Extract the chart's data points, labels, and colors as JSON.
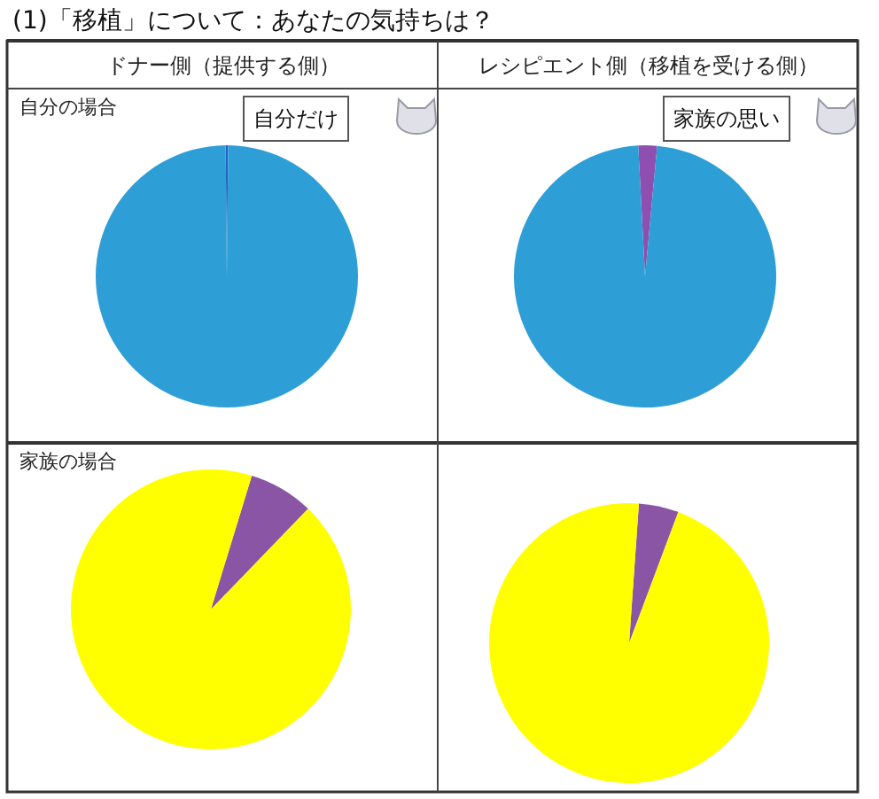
{
  "chart_data": [
    {
      "type": "other",
      "title": "(1)「移植」について：あなたの気持ちは？"
    },
    {
      "type": "pie",
      "title": "ドナー側（提供する側）",
      "subtitle": "自分の場合",
      "categories": [
        null,
        null
      ],
      "values": [
        0.3,
        99.7
      ],
      "colors": [
        "#1f63c6",
        "#2e9ed6"
      ],
      "annotations": [
        "自分だけ"
      ]
    },
    {
      "type": "pie",
      "title": "レシピエント側（移植を受ける側）",
      "categories": [
        null,
        null
      ],
      "values": [
        2.3,
        97.7
      ],
      "colors": [
        "#8e4fb0",
        "#2e9ed6"
      ],
      "annotations": [
        "家族の思い"
      ]
    },
    {
      "type": "pie",
      "subtitle": "家族の場合",
      "categories": [
        null,
        null
      ],
      "values": [
        7.5,
        92.5
      ],
      "colors": [
        "#8b55a6",
        "#ffff00"
      ]
    },
    {
      "type": "pie",
      "categories": [
        null,
        null
      ],
      "values": [
        4.6,
        95.4
      ],
      "colors": [
        "#8b55a6",
        "#ffff00"
      ]
    }
  ]
}
